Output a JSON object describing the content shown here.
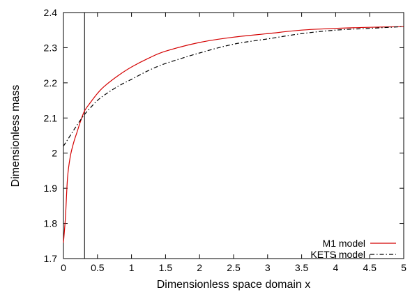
{
  "chart_data": {
    "type": "line",
    "xlabel": "Dimensionless space domain x",
    "ylabel": "Dimensionless mass",
    "xlim": [
      0,
      5
    ],
    "ylim": [
      1.7,
      2.4
    ],
    "x_ticks": [
      0,
      0.5,
      1,
      1.5,
      2,
      2.5,
      3,
      3.5,
      4,
      4.5,
      5
    ],
    "x_tick_labels": [
      "0",
      "0.5",
      "1",
      "1.5",
      "2",
      "2.5",
      "3",
      "3.5",
      "4",
      "4.5",
      "5"
    ],
    "y_ticks": [
      1.7,
      1.8,
      1.9,
      2.0,
      2.1,
      2.2,
      2.3,
      2.4
    ],
    "y_tick_labels": [
      "1.7",
      "1.8",
      "1.9",
      "2",
      "2.1",
      "2.2",
      "2.3",
      "2.4"
    ],
    "vertical_line_x": 0.31,
    "grid": false,
    "legend_position": "bottom-right",
    "series": [
      {
        "name": "M1 model",
        "color": "#d40000",
        "style": "solid",
        "x": [
          0.0,
          0.03,
          0.06,
          0.1,
          0.15,
          0.2,
          0.25,
          0.31,
          0.4,
          0.5,
          0.6,
          0.8,
          1.0,
          1.25,
          1.5,
          2.0,
          2.5,
          3.0,
          3.5,
          4.0,
          4.5,
          5.0
        ],
        "y": [
          1.745,
          1.82,
          1.93,
          1.99,
          2.03,
          2.06,
          2.09,
          2.12,
          2.145,
          2.17,
          2.19,
          2.22,
          2.245,
          2.27,
          2.29,
          2.315,
          2.33,
          2.34,
          2.35,
          2.355,
          2.358,
          2.36
        ]
      },
      {
        "name": "KETS model",
        "color": "#000000",
        "style": "dash-dot",
        "x": [
          0.0,
          0.1,
          0.2,
          0.31,
          0.4,
          0.5,
          0.6,
          0.8,
          1.0,
          1.25,
          1.5,
          2.0,
          2.5,
          3.0,
          3.5,
          4.0,
          4.5,
          5.0
        ],
        "y": [
          2.02,
          2.05,
          2.08,
          2.11,
          2.13,
          2.15,
          2.165,
          2.19,
          2.21,
          2.235,
          2.255,
          2.285,
          2.31,
          2.325,
          2.34,
          2.35,
          2.355,
          2.36
        ]
      }
    ]
  }
}
